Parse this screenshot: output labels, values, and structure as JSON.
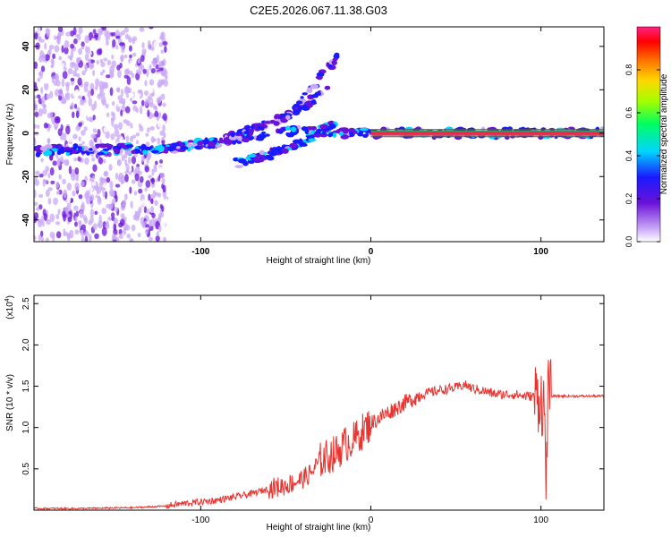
{
  "title": "C2E5.2026.067.11.38.G03",
  "colors": {
    "trace": "#e8332f",
    "axis": "#000000",
    "background": "#ffffff",
    "grid_band": "#8a8a8a"
  },
  "chart_data": [
    {
      "type": "heatmap",
      "title": "C2E5.2026.067.11.38.G03",
      "xlabel": "Height of straight line (km)",
      "ylabel": "Frequency (Hz)",
      "xlim": [
        -198,
        137
      ],
      "ylim": [
        -50,
        49
      ],
      "xticks": [
        -100,
        0,
        100
      ],
      "yticks": [
        -40,
        -20,
        0,
        20,
        40
      ],
      "colorbar": {
        "label": "Normalized spectral amplitude",
        "range": [
          0,
          1
        ],
        "ticks": [
          0,
          0.2,
          0.4,
          0.6,
          0.8
        ],
        "colormap": [
          "#ffffff",
          "#b98cf5",
          "#5a0fd8",
          "#1a1aff",
          "#00e5ff",
          "#00ff40",
          "#ffff00",
          "#ff8000",
          "#ff0000",
          "#ff1a80"
        ]
      },
      "features": [
        {
          "name": "broadband scatter",
          "x": [
            -198,
            -120
          ],
          "freq": [
            -50,
            49
          ],
          "amplitude": 0.15
        },
        {
          "name": "main trace",
          "x": [
            -198,
            -120,
            -90,
            -60,
            -40,
            -20,
            0,
            100,
            137
          ],
          "freq": [
            -8,
            -7,
            -4,
            0,
            1,
            0,
            0,
            0,
            0
          ],
          "amplitude": 0.35
        },
        {
          "name": "branch 1",
          "x": [
            -85,
            -65,
            -45,
            -25
          ],
          "freq": [
            -3,
            3,
            10,
            20
          ],
          "amplitude": 0.3
        },
        {
          "name": "branch 2",
          "x": [
            -80,
            -60,
            -40,
            -20
          ],
          "freq": [
            -14,
            -10,
            -4,
            5
          ],
          "amplitude": 0.35
        },
        {
          "name": "branch 3",
          "x": [
            -50,
            -40,
            -30,
            -20
          ],
          "freq": [
            5,
            15,
            25,
            35
          ],
          "amplitude": 0.3
        },
        {
          "name": "carrier line",
          "x": [
            0,
            137
          ],
          "freq": [
            0,
            0
          ],
          "amplitude": 0.95
        }
      ]
    },
    {
      "type": "line",
      "xlabel": "Height of straight line (km)",
      "ylabel": "SNR (10 * v/v)",
      "scale_label": "(x10",
      "scale_exponent": "4",
      "xlim": [
        -198,
        137
      ],
      "ylim": [
        0,
        2.6
      ],
      "xticks": [
        -100,
        0,
        100
      ],
      "yticks": [
        0.5,
        1.0,
        1.5,
        2.0,
        2.5
      ],
      "ytick_labels": [
        "0.5",
        "1.0",
        "1.5",
        "2.0",
        "2.5"
      ],
      "series": [
        {
          "name": "SNR",
          "x": [
            -198,
            -170,
            -140,
            -120,
            -110,
            -100,
            -90,
            -80,
            -70,
            -60,
            -50,
            -40,
            -35,
            -30,
            -25,
            -20,
            -15,
            -10,
            -5,
            0,
            10,
            20,
            30,
            40,
            50,
            55,
            60,
            65,
            70,
            75,
            80,
            85,
            90,
            95,
            100,
            102,
            103,
            104,
            106,
            110,
            120,
            137
          ],
          "values": [
            0.02,
            0.02,
            0.03,
            0.05,
            0.08,
            0.1,
            0.12,
            0.16,
            0.2,
            0.26,
            0.3,
            0.38,
            0.45,
            0.6,
            0.65,
            0.7,
            0.8,
            0.85,
            0.95,
            1.05,
            1.18,
            1.3,
            1.4,
            1.45,
            1.48,
            1.52,
            1.47,
            1.45,
            1.42,
            1.4,
            1.4,
            1.4,
            1.38,
            1.38,
            1.38,
            1.2,
            0.3,
            1.4,
            1.38,
            1.38,
            1.38,
            1.38
          ]
        }
      ]
    }
  ]
}
